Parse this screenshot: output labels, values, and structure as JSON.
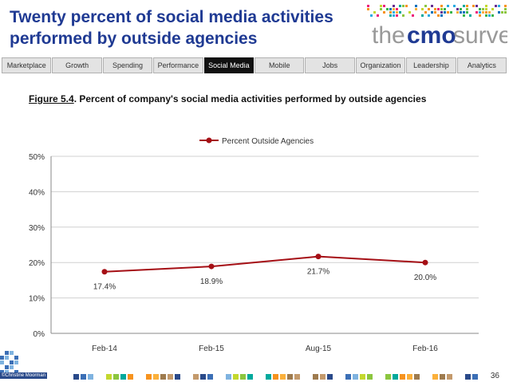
{
  "header": {
    "title_line1": "Twenty percent of social media activities",
    "title_line2": "performed by outside agencies",
    "logo_text_the": "the",
    "logo_text_cmo": "cmo",
    "logo_text_survey": "survey"
  },
  "nav": {
    "tabs": [
      {
        "label": "Marketplace"
      },
      {
        "label": "Growth"
      },
      {
        "label": "Spending"
      },
      {
        "label": "Performance"
      },
      {
        "label": "Social Media"
      },
      {
        "label": "Mobile"
      },
      {
        "label": "Jobs"
      },
      {
        "label": "Organization"
      },
      {
        "label": "Leadership"
      },
      {
        "label": "Analytics"
      }
    ],
    "active_index": 4
  },
  "figure": {
    "number": "Figure 5.4",
    "caption": ".  Percent of company's social media activities performed by outside agencies"
  },
  "chart_data": {
    "type": "line",
    "title": "",
    "categories": [
      "Feb-14",
      "Feb-15",
      "Aug-15",
      "Feb-16"
    ],
    "series": [
      {
        "name": "Percent Outside Agencies",
        "values": [
          17.4,
          18.9,
          21.7,
          20.0
        ],
        "labels": [
          "17.4%",
          "18.9%",
          "21.7%",
          "20.0%"
        ],
        "color": "#a50f15"
      }
    ],
    "ylim": [
      0,
      50
    ],
    "yticks": [
      0,
      10,
      20,
      30,
      40,
      50
    ],
    "ytick_labels": [
      "0%",
      "10%",
      "20%",
      "30%",
      "40%",
      "50%"
    ],
    "legend": "top-center",
    "grid": true
  },
  "footer": {
    "page_number": "36",
    "copyright": "©Christine Moorman"
  },
  "colors": {
    "title": "#1f3a93",
    "active_tab": "#111111",
    "series": "#a50f15"
  }
}
